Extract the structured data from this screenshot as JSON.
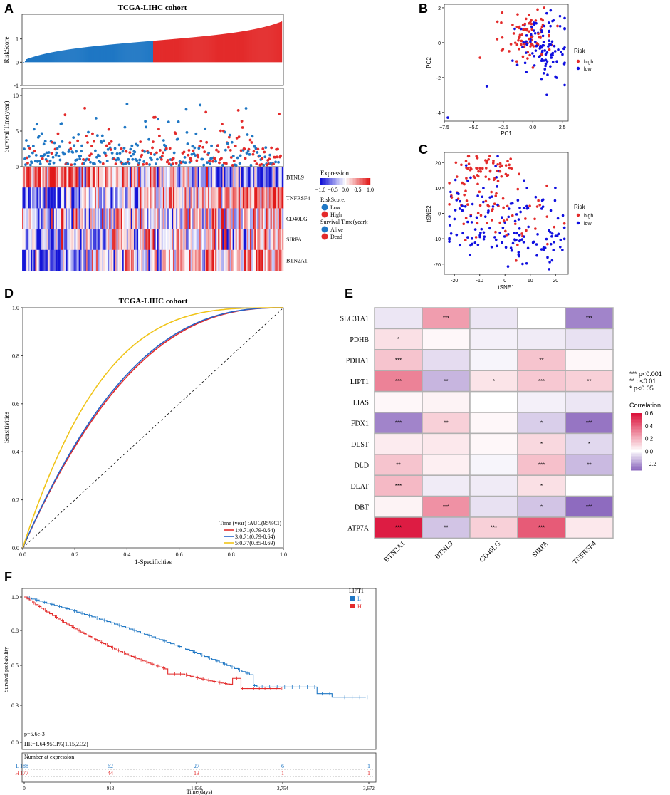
{
  "panels": {
    "a": "A",
    "b": "B",
    "c": "C",
    "d": "D",
    "e": "E",
    "f": "F"
  },
  "colors": {
    "blue": "#1f77c4",
    "red": "#e32b2b",
    "heat_blue": "#1010d8",
    "heat_red": "#e81c1c",
    "yellow": "#f0c419",
    "corr_red": "#dc143c",
    "corr_purple": "#8e6bbf"
  },
  "chart_data": [
    {
      "id": "A",
      "type": "bar",
      "title": "TCGA-LIHC cohort",
      "ylabel": "RiskScore",
      "ylim": [
        -1,
        2
      ],
      "yticks": [
        "1",
        "0",
        "-1"
      ],
      "n_samples": 365,
      "n_low": 183,
      "range": [
        -0.1,
        1.75
      ],
      "series_colors": [
        "low",
        "high"
      ]
    },
    {
      "id": "A2",
      "type": "scatter",
      "ylabel": "Survival Time(year)",
      "ylim": [
        0,
        10
      ],
      "yticks": [
        "10",
        "5",
        "0"
      ],
      "groups": [
        "Alive",
        "Dead"
      ]
    },
    {
      "id": "A3",
      "type": "heatmap",
      "genes": [
        "BTNL9",
        "TNFRSF4",
        "CD40LG",
        "SIRPA",
        "BTN2A1"
      ],
      "legend_title": "Expression",
      "legend_ticks": [
        "−1.0",
        "−0.5",
        "0.0",
        "0.5",
        "1.0"
      ],
      "riskscore_label": "RiskScore:",
      "risk_levels": [
        "Low",
        "High"
      ],
      "survival_label": "Survival Time(year):",
      "status_levels": [
        "Alive",
        "Dead"
      ]
    },
    {
      "id": "B",
      "type": "scatter",
      "xlabel": "PC1",
      "ylabel": "PC2",
      "xlim": [
        -7.5,
        3
      ],
      "ylim": [
        -4.5,
        2.2
      ],
      "xticks": [
        "−7.5",
        "−5.0",
        "−2.5",
        "0.0",
        "2.5"
      ],
      "yticks": [
        "2",
        "0",
        "-2",
        "-4"
      ],
      "legend_title": "Risk",
      "legend": [
        "high",
        "low"
      ]
    },
    {
      "id": "C",
      "type": "scatter",
      "xlabel": "tSNE1",
      "ylabel": "tSNE2",
      "xlim": [
        -24,
        25
      ],
      "ylim": [
        -24,
        24
      ],
      "xticks": [
        "-20",
        "-10",
        "0",
        "10",
        "20"
      ],
      "yticks": [
        "20",
        "10",
        "0",
        "-10",
        "-20"
      ],
      "legend_title": "Risk",
      "legend": [
        "high",
        "low"
      ]
    },
    {
      "id": "D",
      "type": "line",
      "title": "TCGA-LIHC cohort",
      "xlabel": "1-Specificities",
      "ylabel": "Sensitivities",
      "xlim": [
        0,
        1
      ],
      "ylim": [
        0,
        1
      ],
      "xticks": [
        "0.0",
        "0.2",
        "0.4",
        "0.6",
        "0.8",
        "1.0"
      ],
      "yticks": [
        "1.0",
        "0.8",
        "0.6",
        "0.4",
        "0.2",
        "0.0"
      ],
      "legend_title": "Time (year) :AUC(95%CI)",
      "series": [
        {
          "name": "1:0.71(0.79-0.64)",
          "auc": 0.71,
          "color": "#e32b2b"
        },
        {
          "name": "3:0.71(0.79-0.64)",
          "auc": 0.715,
          "color": "#2563c9"
        },
        {
          "name": "5:0.77(0.85-0.69)",
          "auc": 0.77,
          "color": "#f0c419"
        }
      ]
    },
    {
      "id": "E",
      "type": "heatmap",
      "rows": [
        "SLC31A1",
        "PDHB",
        "PDHA1",
        "LIPT1",
        "LIAS",
        "FDX1",
        "DLST",
        "DLD",
        "DLAT",
        "DBT",
        "ATP7A"
      ],
      "cols": [
        "BTN2A1",
        "BTNL9",
        "CD40LG",
        "SIRPA",
        "TNFRSF4"
      ],
      "values": [
        [
          -0.05,
          0.25,
          -0.05,
          0.0,
          -0.25
        ],
        [
          0.08,
          0.02,
          -0.03,
          -0.04,
          -0.06
        ],
        [
          0.15,
          -0.07,
          -0.02,
          0.15,
          0.02
        ],
        [
          0.32,
          -0.15,
          0.07,
          0.14,
          0.12
        ],
        [
          0.02,
          0.03,
          0.0,
          -0.03,
          -0.05
        ],
        [
          -0.25,
          0.12,
          0.02,
          -0.1,
          -0.28
        ],
        [
          0.05,
          0.06,
          0.02,
          0.1,
          -0.08
        ],
        [
          0.15,
          0.04,
          -0.02,
          0.16,
          -0.14
        ],
        [
          0.18,
          -0.04,
          -0.04,
          0.08,
          0.0
        ],
        [
          0.03,
          0.28,
          -0.06,
          -0.12,
          -0.3
        ],
        [
          0.58,
          -0.12,
          0.12,
          0.42,
          0.06
        ]
      ],
      "stars": [
        [
          "",
          "***",
          "",
          "",
          "***"
        ],
        [
          "*",
          "",
          "",
          "",
          ""
        ],
        [
          "***",
          "",
          "",
          "**",
          ""
        ],
        [
          "***",
          "**",
          "*",
          "***",
          "**"
        ],
        [
          "",
          "",
          "",
          "",
          ""
        ],
        [
          "***",
          "**",
          "",
          "*",
          "***"
        ],
        [
          "",
          "",
          "",
          "*",
          "*"
        ],
        [
          "**",
          "",
          "",
          "***",
          "**"
        ],
        [
          "***",
          "",
          "",
          "*",
          ""
        ],
        [
          "",
          "***",
          "",
          "*",
          "***"
        ],
        [
          "***",
          "**",
          "***",
          "***",
          ""
        ]
      ],
      "sig_legend": [
        "*** p<0.001",
        "** p<0.01",
        "* p<0.05"
      ],
      "legend_title": "Correlation",
      "legend_ticks": [
        "0.6",
        "0.4",
        "0.2",
        "0.0",
        "−0.2"
      ],
      "range": [
        -0.3,
        0.6
      ]
    },
    {
      "id": "F",
      "type": "line",
      "xlabel": "Time(days)",
      "ylabel": "Survival probability",
      "xticks": [
        "0",
        "918",
        "1,836",
        "2,754",
        "3,672"
      ],
      "yticks": [
        "1.0",
        "0.8",
        "0.5",
        "0.3",
        "0.0"
      ],
      "legend_title": "LIPT1",
      "legend": [
        "L",
        "H"
      ],
      "pvalue": "p=5.6e-3",
      "hr": "HR=1.64,95CI%(1.15,2.32)",
      "risk_table_title": "Number at expression",
      "risk_table": [
        {
          "group": "L",
          "counts": [
            "188",
            "62",
            "27",
            "6",
            "1"
          ]
        },
        {
          "group": "H",
          "counts": [
            "177",
            "44",
            "13",
            "1",
            "1"
          ]
        }
      ]
    }
  ]
}
